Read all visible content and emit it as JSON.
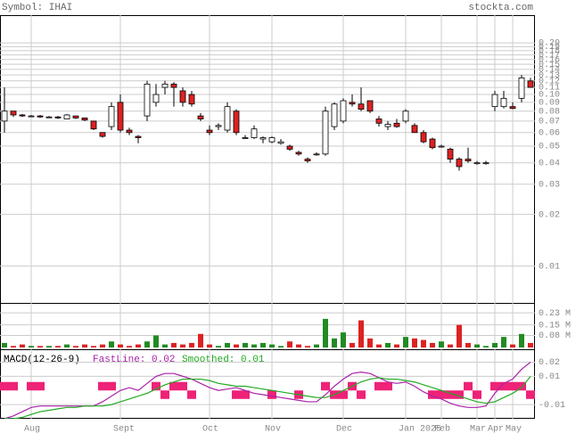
{
  "header": {
    "symbol": "Symbol: IHAI",
    "site": "stockta.com"
  },
  "chart_data": [
    {
      "type": "candlestick",
      "log_scale": true,
      "grid": true,
      "categories": [
        null,
        null,
        null,
        "Aug",
        null,
        null,
        null,
        null,
        null,
        null,
        null,
        null,
        null,
        "Sept",
        null,
        null,
        null,
        null,
        null,
        null,
        null,
        null,
        null,
        "Oct",
        null,
        null,
        null,
        null,
        null,
        null,
        "Nov",
        null,
        null,
        null,
        null,
        null,
        null,
        null,
        "Dec",
        null,
        null,
        null,
        null,
        null,
        null,
        "Jan 2025",
        null,
        null,
        null,
        "Feb",
        null,
        null,
        null,
        "Mar",
        null,
        "Apr",
        null,
        "May",
        null,
        null
      ],
      "open": [
        0.07,
        0.08,
        0.076,
        0.075,
        0.075,
        0.074,
        0.074,
        0.072,
        0.075,
        0.073,
        0.07,
        0.06,
        0.065,
        0.09,
        0.062,
        0.057,
        0.075,
        0.09,
        0.11,
        0.115,
        0.105,
        0.1,
        0.075,
        0.062,
        0.065,
        0.062,
        0.08,
        0.056,
        0.056,
        0.055,
        0.053,
        0.052,
        0.05,
        0.046,
        0.042,
        0.045,
        0.045,
        0.065,
        0.07,
        0.09,
        0.088,
        0.092,
        0.072,
        0.065,
        0.068,
        0.07,
        0.066,
        0.06,
        0.055,
        0.05,
        0.048,
        0.042,
        0.042,
        0.04,
        0.04,
        0.085,
        0.085,
        0.085,
        0.095,
        0.12
      ],
      "high": [
        0.11,
        0.08,
        0.077,
        0.076,
        0.076,
        0.075,
        0.075,
        0.077,
        0.075,
        0.073,
        0.07,
        0.06,
        0.09,
        0.1,
        0.064,
        0.058,
        0.12,
        0.115,
        0.12,
        0.118,
        0.11,
        0.105,
        0.078,
        0.066,
        0.068,
        0.09,
        0.082,
        0.058,
        0.066,
        0.057,
        0.057,
        0.055,
        0.051,
        0.047,
        0.043,
        0.046,
        0.085,
        0.09,
        0.095,
        0.1,
        0.11,
        0.092,
        0.075,
        0.07,
        0.072,
        0.082,
        0.068,
        0.062,
        0.056,
        0.051,
        0.049,
        0.043,
        0.049,
        0.041,
        0.041,
        0.105,
        0.105,
        0.09,
        0.13,
        0.125
      ],
      "low": [
        0.06,
        0.074,
        0.074,
        0.074,
        0.073,
        0.073,
        0.072,
        0.072,
        0.072,
        0.07,
        0.062,
        0.056,
        0.062,
        0.06,
        0.058,
        0.052,
        0.07,
        0.085,
        0.1,
        0.085,
        0.085,
        0.085,
        0.07,
        0.058,
        0.062,
        0.06,
        0.058,
        0.055,
        0.055,
        0.052,
        0.052,
        0.051,
        0.047,
        0.044,
        0.04,
        0.044,
        0.044,
        0.062,
        0.068,
        0.085,
        0.08,
        0.078,
        0.065,
        0.062,
        0.064,
        0.068,
        0.06,
        0.052,
        0.048,
        0.049,
        0.04,
        0.036,
        0.04,
        0.039,
        0.039,
        0.08,
        0.083,
        0.082,
        0.09,
        0.11
      ],
      "close": [
        0.08,
        0.076,
        0.075,
        0.075,
        0.074,
        0.074,
        0.073,
        0.076,
        0.073,
        0.071,
        0.063,
        0.057,
        0.085,
        0.062,
        0.06,
        0.056,
        0.115,
        0.1,
        0.115,
        0.11,
        0.09,
        0.088,
        0.072,
        0.06,
        0.066,
        0.085,
        0.06,
        0.056,
        0.063,
        0.056,
        0.056,
        0.053,
        0.048,
        0.045,
        0.041,
        0.045,
        0.08,
        0.088,
        0.092,
        0.088,
        0.082,
        0.08,
        0.068,
        0.067,
        0.065,
        0.08,
        0.06,
        0.053,
        0.049,
        0.05,
        0.042,
        0.038,
        0.041,
        0.04,
        0.04,
        0.1,
        0.095,
        0.083,
        0.125,
        0.11
      ],
      "up_color": "#ffffff",
      "down_color": "#dd2222",
      "ylim": [
        0.0061,
        0.29
      ],
      "yticks": [
        0.01,
        0.02,
        0.03,
        0.04,
        0.05,
        0.06,
        0.07,
        0.08,
        0.09,
        {
          "value": 0.1,
          "label": "0.10"
        },
        0.11,
        0.12,
        0.13,
        0.14,
        0.15,
        0.16,
        0.17,
        0.18,
        0.19,
        {
          "value": 0.2,
          "label": "0.20"
        }
      ]
    },
    {
      "type": "bar",
      "up_color": "#228b22",
      "down_color": "#dd2222",
      "values": [
        0.03,
        0.01,
        0.02,
        0.01,
        0.01,
        0.01,
        0.01,
        0.02,
        0.01,
        0.02,
        0.01,
        0.02,
        0.04,
        0.02,
        0.01,
        0.02,
        0.04,
        0.08,
        0.02,
        0.03,
        0.02,
        0.03,
        0.09,
        0.02,
        0.01,
        0.03,
        0.02,
        0.03,
        0.02,
        0.03,
        0.02,
        0.01,
        0.04,
        0.02,
        0.01,
        0.02,
        0.19,
        0.06,
        0.1,
        0.03,
        0.18,
        0.06,
        0.02,
        0.03,
        0.02,
        0.07,
        0.06,
        0.05,
        0.03,
        0.04,
        0.02,
        0.15,
        0.03,
        0.02,
        0.01,
        0.03,
        0.07,
        0.02,
        0.09,
        0.03
      ],
      "ylim": [
        0,
        0.29
      ],
      "yticks": [
        {
          "value": 0.08,
          "label": "0.08 M"
        },
        {
          "value": 0.15,
          "label": "0.15 M"
        },
        {
          "value": 0.23,
          "label": "0.23 M"
        }
      ]
    },
    {
      "type": "line",
      "title": "MACD(12-26-9)",
      "series": [
        {
          "name": "FastLine: 0.02",
          "color": "#aa22aa",
          "values": [
            -0.02,
            -0.018,
            -0.015,
            -0.012,
            -0.011,
            -0.011,
            -0.011,
            -0.011,
            -0.011,
            -0.011,
            -0.011,
            -0.008,
            -0.004,
            0.0,
            0.002,
            0.0,
            0.005,
            0.01,
            0.012,
            0.012,
            0.01,
            0.008,
            0.005,
            0.002,
            0.0,
            0.001,
            0.002,
            0.0,
            -0.002,
            -0.003,
            -0.004,
            -0.005,
            -0.006,
            -0.007,
            -0.008,
            -0.008,
            -0.003,
            0.003,
            0.008,
            0.012,
            0.013,
            0.012,
            0.009,
            0.006,
            0.005,
            0.006,
            0.003,
            -0.001,
            -0.004,
            -0.006,
            -0.009,
            -0.011,
            -0.012,
            -0.012,
            -0.011,
            -0.002,
            0.005,
            0.008,
            0.015,
            0.02
          ]
        },
        {
          "name": "Smoothed: 0.01",
          "color": "#22aa22",
          "values": [
            -0.02,
            -0.02,
            -0.019,
            -0.017,
            -0.015,
            -0.014,
            -0.013,
            -0.012,
            -0.012,
            -0.011,
            -0.011,
            -0.011,
            -0.01,
            -0.008,
            -0.006,
            -0.004,
            -0.002,
            0.001,
            0.004,
            0.006,
            0.008,
            0.008,
            0.008,
            0.007,
            0.005,
            0.004,
            0.003,
            0.003,
            0.002,
            0.001,
            0.0,
            -0.001,
            -0.002,
            -0.003,
            -0.004,
            -0.005,
            -0.005,
            -0.003,
            0.0,
            0.003,
            0.006,
            0.008,
            0.009,
            0.008,
            0.008,
            0.007,
            0.006,
            0.004,
            0.002,
            0.0,
            -0.002,
            -0.004,
            -0.006,
            -0.008,
            -0.009,
            -0.008,
            -0.005,
            -0.002,
            0.002,
            0.01
          ]
        }
      ],
      "histogram": {
        "color": "#ee2277",
        "values": [
          0.006,
          0.006,
          0,
          0.006,
          0.006,
          0,
          0,
          0,
          0,
          0,
          0,
          0.006,
          0.006,
          0,
          0,
          0,
          0,
          0.006,
          -0.006,
          0.006,
          0.006,
          -0.006,
          0,
          0,
          0,
          0,
          -0.006,
          -0.006,
          0,
          0,
          -0.006,
          0,
          0,
          -0.006,
          0,
          0,
          0.006,
          -0.006,
          -0.006,
          0.006,
          -0.006,
          0,
          0.006,
          0.006,
          0,
          0,
          0,
          0,
          -0.006,
          -0.006,
          -0.006,
          -0.006,
          0.006,
          -0.006,
          0,
          0.006,
          0.006,
          0.006,
          0.006,
          -0.006
        ]
      },
      "ylim": [
        -0.02,
        0.0285
      ],
      "yticks": [
        -0.01,
        0.01,
        0.02
      ]
    }
  ]
}
